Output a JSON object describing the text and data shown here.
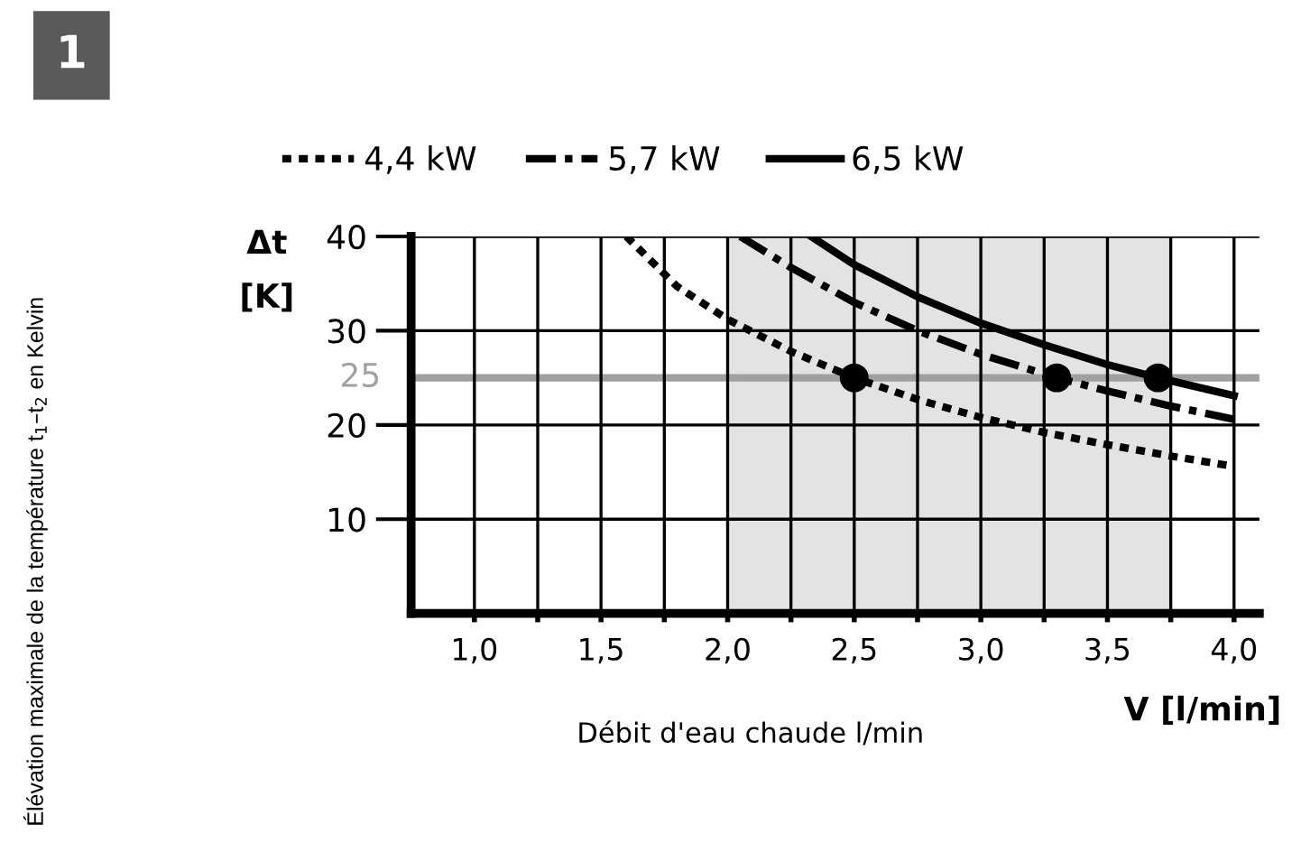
{
  "chart_data": {
    "type": "line",
    "xlabel": "Débit d'eau chaude l/min",
    "ylabel": "Δt\n[K]",
    "annotations": [
      "1",
      "Élévation maximale de la température t$_{1}$–t$_{2}$ en Kelvin",
      "V [l/min]"
    ],
    "series": [
      {
        "name": "4,4 kW",
        "color": "#000000",
        "line_style": "dotted",
        "x": [
          1.6,
          1.8,
          2.0,
          2.25,
          2.5,
          2.75,
          3.0,
          3.25,
          3.5,
          3.75,
          4.0
        ],
        "values": [
          40,
          34.7,
          31.2,
          27.8,
          25,
          22.7,
          20.8,
          19.2,
          17.9,
          16.7,
          15.6
        ]
      },
      {
        "name": "5,7 kW",
        "color": "#000000",
        "line_style": "dashdot",
        "x": [
          2.05,
          2.25,
          2.5,
          2.75,
          3.0,
          3.3,
          3.5,
          3.75,
          4.0
        ],
        "values": [
          40,
          36.7,
          33,
          30,
          27.5,
          25,
          23.6,
          22,
          20.6
        ]
      },
      {
        "name": "6,5 kW",
        "color": "#000000",
        "line_style": "solid",
        "x": [
          2.33,
          2.5,
          2.75,
          3.0,
          3.25,
          3.5,
          3.7,
          4.0
        ],
        "values": [
          40,
          37,
          33.6,
          30.8,
          28.5,
          26.4,
          25,
          23.1
        ]
      },
      {
        "type": "scatter",
        "color": "#000000",
        "marker": "circle",
        "x": [
          2.5,
          3.3,
          3.7
        ],
        "values": [
          25,
          25,
          25
        ]
      }
    ],
    "bands": [
      {
        "axis": "x",
        "from": 2.0,
        "to": 3.75,
        "color": "#e3e3e3"
      }
    ],
    "ref_lines": [
      {
        "axis": "y",
        "value": 25,
        "label": "25",
        "color": "#a0a0a0"
      }
    ],
    "xlim": [
      0.75,
      4.1
    ],
    "ylim": [
      0,
      40
    ],
    "xticks": [
      {
        "value": 1.0,
        "label": "1,0"
      },
      {
        "value": 1.25,
        "label": null
      },
      {
        "value": 1.5,
        "label": "1,5"
      },
      {
        "value": 1.75,
        "label": null
      },
      {
        "value": 2.0,
        "label": "2,0"
      },
      {
        "value": 2.25,
        "label": null
      },
      {
        "value": 2.5,
        "label": "2,5"
      },
      {
        "value": 2.75,
        "label": null
      },
      {
        "value": 3.0,
        "label": "3,0"
      },
      {
        "value": 3.25,
        "label": null
      },
      {
        "value": 3.5,
        "label": "3,5"
      },
      {
        "value": 3.75,
        "label": null
      },
      {
        "value": 4.0,
        "label": "4,0"
      }
    ],
    "yticks": [
      10,
      20,
      30,
      40
    ],
    "grid": true,
    "legend": "top"
  }
}
